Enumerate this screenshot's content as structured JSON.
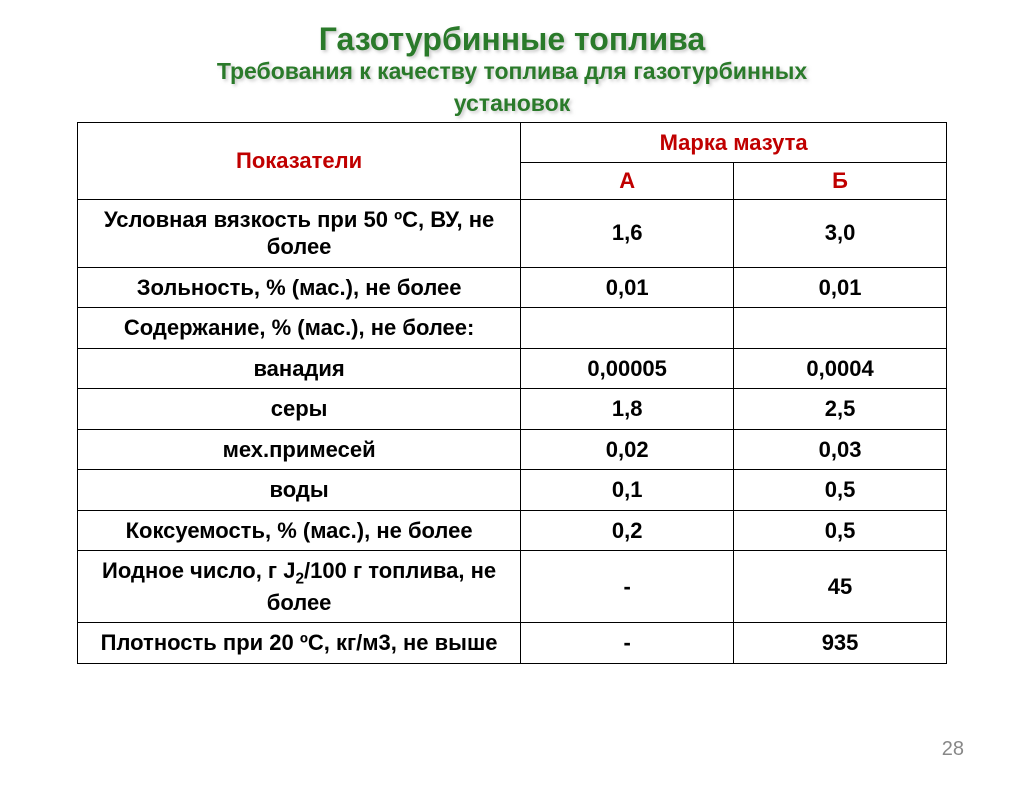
{
  "title": {
    "main": "Газотурбинные топлива",
    "sub1": "Требования к качеству топлива для газотурбинных",
    "sub2": "установок"
  },
  "table": {
    "header_indicator": "Показатели",
    "header_brand": "Марка мазута",
    "col_a": "А",
    "col_b": "Б",
    "rows": [
      {
        "label": "Условная вязкость при 50 ºС, ВУ, не более",
        "a": "1,6",
        "b": "3,0"
      },
      {
        "label": "Зольность, % (мас.), не более",
        "a": "0,01",
        "b": "0,01"
      },
      {
        "label": "Содержание, % (мас.), не более:",
        "a": "",
        "b": ""
      },
      {
        "label": "ванадия",
        "a": "0,00005",
        "b": "0,0004"
      },
      {
        "label": "серы",
        "a": "1,8",
        "b": "2,5"
      },
      {
        "label": "мех.примесей",
        "a": "0,02",
        "b": "0,03"
      },
      {
        "label": "воды",
        "a": "0,1",
        "b": "0,5"
      },
      {
        "label": "Коксуемость, % (мас.), не более",
        "a": "0,2",
        "b": "0,5"
      },
      {
        "label_html": "Иодное число, г J<sub>2</sub>/100 г топлива, не более",
        "a": "-",
        "b": "45"
      },
      {
        "label": "Плотность при 20 ºС, кг/м3, не выше",
        "a": "-",
        "b": "935"
      }
    ],
    "col_widths": {
      "label": "51%",
      "a": "24.5%",
      "b": "24.5%"
    }
  },
  "page_number": "28",
  "colors": {
    "title": "#2a7a2a",
    "header_text": "#c00000",
    "border": "#000000",
    "page_num": "#888888"
  }
}
